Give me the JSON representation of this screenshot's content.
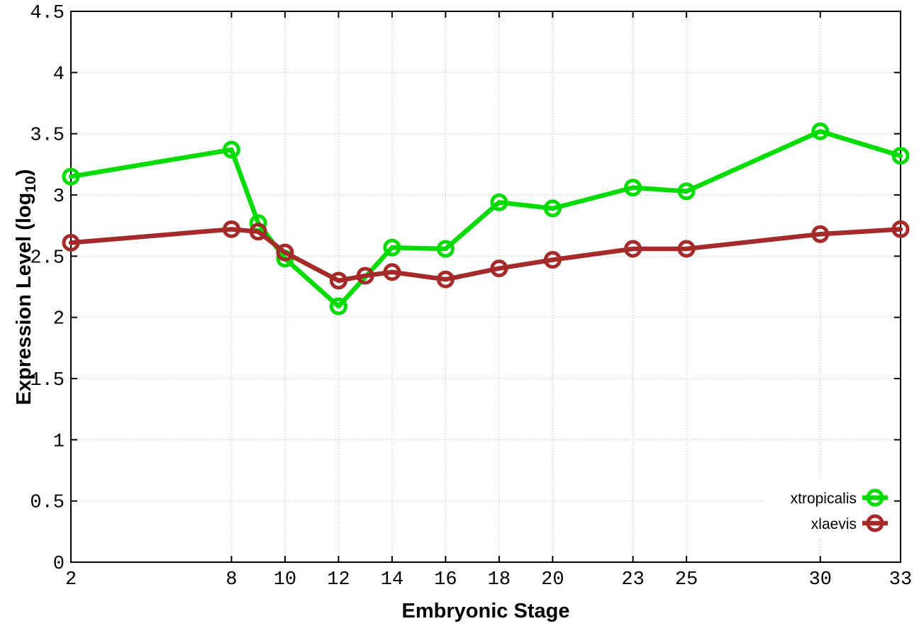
{
  "page": {
    "background": "#ffffff"
  },
  "chart_data": {
    "type": "line",
    "title": "",
    "xlabel": "Embryonic Stage",
    "ylabel": "Expression Level (log10)",
    "ylabel_parts": {
      "main": "Expression Level (log",
      "sub": "10",
      "close": ")"
    },
    "xlim": [
      2,
      33
    ],
    "ylim": [
      0,
      4.5
    ],
    "x_ticks": [
      2,
      8,
      10,
      12,
      14,
      16,
      18,
      20,
      23,
      25,
      30,
      33
    ],
    "x_tick_labels": [
      "2",
      "8",
      "10",
      "12",
      "14",
      "16",
      "18",
      "20",
      "23",
      "25",
      "30",
      "33"
    ],
    "y_ticks": [
      0,
      0.5,
      1,
      1.5,
      2,
      2.5,
      3,
      3.5,
      4,
      4.5
    ],
    "y_tick_labels": [
      "0",
      "0.5",
      "1",
      "1.5",
      "2",
      "2.5",
      "3",
      "3.5",
      "4",
      "4.5"
    ],
    "grid": true,
    "legend_position": "bottom-right",
    "series": [
      {
        "name": "xtropicalis",
        "color": "#00dc00",
        "marker": "open-circle",
        "points": [
          [
            2,
            3.15
          ],
          [
            8,
            3.37
          ],
          [
            9,
            2.77
          ],
          [
            10,
            2.48
          ],
          [
            12,
            2.09
          ],
          [
            14,
            2.57
          ],
          [
            16,
            2.56
          ],
          [
            18,
            2.94
          ],
          [
            20,
            2.89
          ],
          [
            23,
            3.06
          ],
          [
            25,
            3.03
          ],
          [
            30,
            3.52
          ],
          [
            33,
            3.32
          ]
        ]
      },
      {
        "name": "xlaevis",
        "color": "#a52a2a",
        "marker": "open-circle",
        "points": [
          [
            2,
            2.61
          ],
          [
            8,
            2.72
          ],
          [
            9,
            2.7
          ],
          [
            10,
            2.53
          ],
          [
            12,
            2.3
          ],
          [
            13,
            2.34
          ],
          [
            14,
            2.37
          ],
          [
            16,
            2.31
          ],
          [
            18,
            2.4
          ],
          [
            20,
            2.47
          ],
          [
            23,
            2.56
          ],
          [
            25,
            2.56
          ],
          [
            30,
            2.68
          ],
          [
            33,
            2.72
          ]
        ]
      }
    ],
    "style": {
      "grid_color": "#b8b8b8",
      "axis_color": "#000000",
      "text_color": "#000000",
      "legend_background": "#ffffff"
    }
  }
}
